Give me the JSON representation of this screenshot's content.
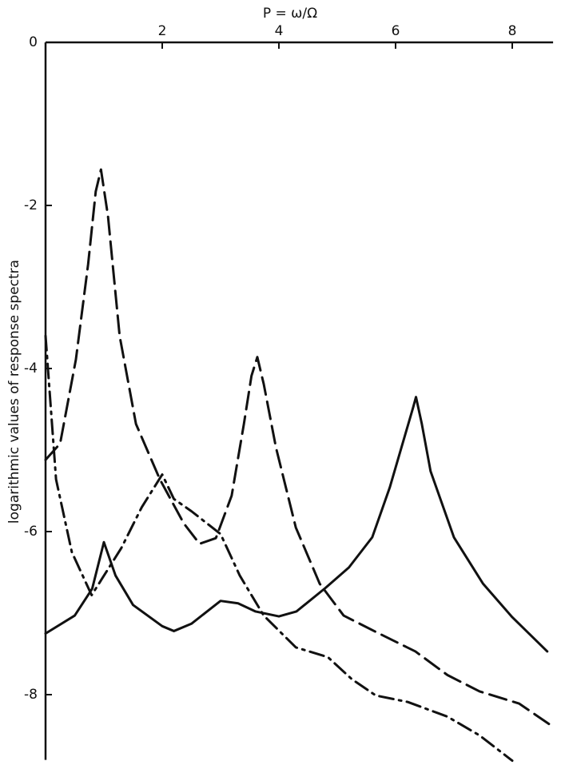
{
  "chart_data": {
    "type": "line",
    "x_label": "P = ω/Ω",
    "y_label": "logarithmic values of response spectra",
    "xlim": [
      0,
      8.7
    ],
    "ylim": [
      -8.8,
      0
    ],
    "xticks": [
      2,
      4,
      6,
      8
    ],
    "yticks": [
      0,
      -2,
      -4,
      -6,
      -8
    ],
    "series": [
      {
        "color": "#111111",
        "dash": "solid",
        "x": [
          0,
          0.5,
          0.8,
          1.0,
          1.2,
          1.5,
          2.0,
          2.2,
          2.5,
          3.0,
          3.3,
          3.6,
          4.0,
          4.3,
          4.8,
          5.2,
          5.6,
          5.9,
          6.1,
          6.3,
          6.35,
          6.45,
          6.6,
          7.0,
          7.5,
          8.0,
          8.6
        ],
        "values": [
          -7.25,
          -7.03,
          -6.7,
          -6.13,
          -6.54,
          -6.9,
          -7.16,
          -7.22,
          -7.13,
          -6.85,
          -6.88,
          -6.98,
          -7.04,
          -6.98,
          -6.69,
          -6.44,
          -6.07,
          -5.46,
          -4.97,
          -4.48,
          -4.35,
          -4.68,
          -5.26,
          -6.07,
          -6.64,
          -7.05,
          -7.47
        ]
      },
      {
        "color": "#111111",
        "dash": "dashed",
        "x": [
          0,
          0.25,
          0.52,
          0.73,
          0.86,
          0.95,
          1.07,
          1.27,
          1.55,
          1.96,
          2.37,
          2.64,
          2.92,
          3.19,
          3.4,
          3.53,
          3.63,
          3.74,
          3.95,
          4.29,
          4.7,
          5.11,
          5.66,
          6.34,
          6.89,
          7.44,
          8.12,
          8.67
        ],
        "values": [
          -5.12,
          -4.92,
          -3.89,
          -2.72,
          -1.83,
          -1.56,
          -2.13,
          -3.6,
          -4.68,
          -5.36,
          -5.9,
          -6.15,
          -6.08,
          -5.56,
          -4.68,
          -4.09,
          -3.86,
          -4.19,
          -4.97,
          -5.95,
          -6.64,
          -7.03,
          -7.23,
          -7.47,
          -7.76,
          -7.96,
          -8.11,
          -8.38
        ]
      },
      {
        "color": "#111111",
        "dash": "dashdot",
        "x": [
          0,
          0.18,
          0.45,
          0.79,
          1.3,
          1.65,
          2.0,
          2.2,
          2.5,
          3.0,
          3.33,
          3.74,
          4.29,
          4.84,
          5.25,
          5.66,
          6.21,
          6.89,
          7.44,
          8.0
        ],
        "values": [
          -3.6,
          -5.36,
          -6.25,
          -6.78,
          -6.2,
          -5.7,
          -5.3,
          -5.6,
          -5.75,
          -6.03,
          -6.54,
          -7.03,
          -7.42,
          -7.54,
          -7.81,
          -8.01,
          -8.09,
          -8.27,
          -8.5,
          -8.81
        ]
      }
    ]
  }
}
